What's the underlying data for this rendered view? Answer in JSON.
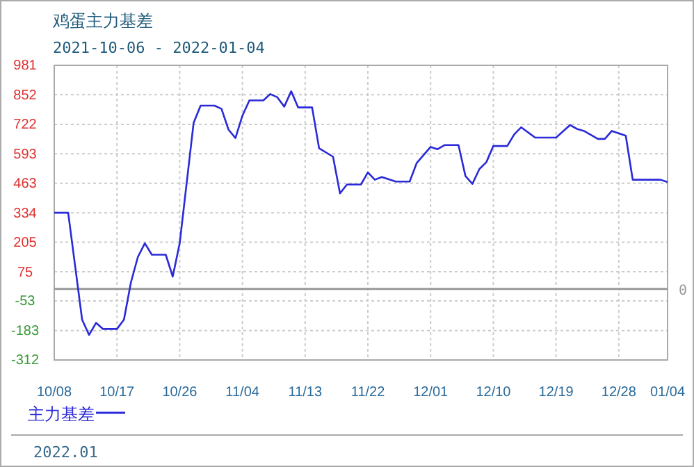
{
  "chart_data": {
    "type": "line",
    "title": "鸡蛋主力基差",
    "subtitle": "2021-10-06 - 2022-01-04",
    "x": [
      "2021-10-08",
      "2021-10-10",
      "2021-10-12",
      "2021-10-13",
      "2021-10-14",
      "2021-10-15",
      "2021-10-17",
      "2021-10-18",
      "2021-10-19",
      "2021-10-20",
      "2021-10-21",
      "2021-10-22",
      "2021-10-24",
      "2021-10-25",
      "2021-10-26",
      "2021-10-28",
      "2021-10-29",
      "2021-10-31",
      "2021-11-01",
      "2021-11-02",
      "2021-11-03",
      "2021-11-04",
      "2021-11-05",
      "2021-11-07",
      "2021-11-08",
      "2021-11-09",
      "2021-11-10",
      "2021-11-11",
      "2021-11-12",
      "2021-11-14",
      "2021-11-15",
      "2021-11-17",
      "2021-11-18",
      "2021-11-19",
      "2021-11-21",
      "2021-11-22",
      "2021-11-23",
      "2021-11-24",
      "2021-11-26",
      "2021-11-28",
      "2021-11-29",
      "2021-12-01",
      "2021-12-02",
      "2021-12-03",
      "2021-12-05",
      "2021-12-06",
      "2021-12-07",
      "2021-12-08",
      "2021-12-09",
      "2021-12-10",
      "2021-12-12",
      "2021-12-13",
      "2021-12-14",
      "2021-12-16",
      "2021-12-19",
      "2021-12-21",
      "2021-12-22",
      "2021-12-23",
      "2021-12-25",
      "2021-12-26",
      "2021-12-27",
      "2021-12-29",
      "2021-12-30",
      "2022-01-03",
      "2022-01-04"
    ],
    "series": [
      {
        "name": "主力基差",
        "color": "#2a2ad8",
        "values": [
          334,
          334,
          -135,
          -202,
          -149,
          -176,
          -176,
          -135,
          28,
          140,
          200,
          150,
          150,
          54,
          200,
          729,
          804,
          804,
          790,
          699,
          662,
          760,
          827,
          827,
          855,
          841,
          800,
          867,
          796,
          796,
          617,
          580,
          419,
          458,
          458,
          511,
          479,
          491,
          471,
          471,
          552,
          623,
          613,
          631,
          631,
          495,
          461,
          526,
          556,
          627,
          627,
          678,
          709,
          664,
          664,
          719,
          702,
          693,
          658,
          658,
          693,
          672,
          479,
          479,
          469
        ]
      }
    ],
    "xlim": [
      "2021-10-08",
      "2022-01-04"
    ],
    "xticks": [
      {
        "value": "2021-10-08",
        "label": "10/08"
      },
      {
        "value": "2021-10-17",
        "label": "10/17"
      },
      {
        "value": "2021-10-26",
        "label": "10/26"
      },
      {
        "value": "2021-11-04",
        "label": "11/04"
      },
      {
        "value": "2021-11-13",
        "label": "11/13"
      },
      {
        "value": "2021-11-22",
        "label": "11/22"
      },
      {
        "value": "2021-12-01",
        "label": "12/01"
      },
      {
        "value": "2021-12-10",
        "label": "12/10"
      },
      {
        "value": "2021-12-19",
        "label": "12/19"
      },
      {
        "value": "2021-12-28",
        "label": "12/28"
      },
      {
        "value": "2022-01-04",
        "label": "01/04"
      }
    ],
    "ylim": [
      -312,
      981
    ],
    "yticks": [
      -312,
      -183,
      -53,
      75,
      205,
      334,
      463,
      593,
      722,
      852,
      981
    ],
    "ref_lines": [
      {
        "axis": "y",
        "value": 0,
        "label": "0",
        "color": "#999999"
      }
    ],
    "grid": true,
    "legend": "bottom left",
    "line_style": "solid",
    "marker": "none",
    "annotations": [
      "2022.01"
    ]
  }
}
